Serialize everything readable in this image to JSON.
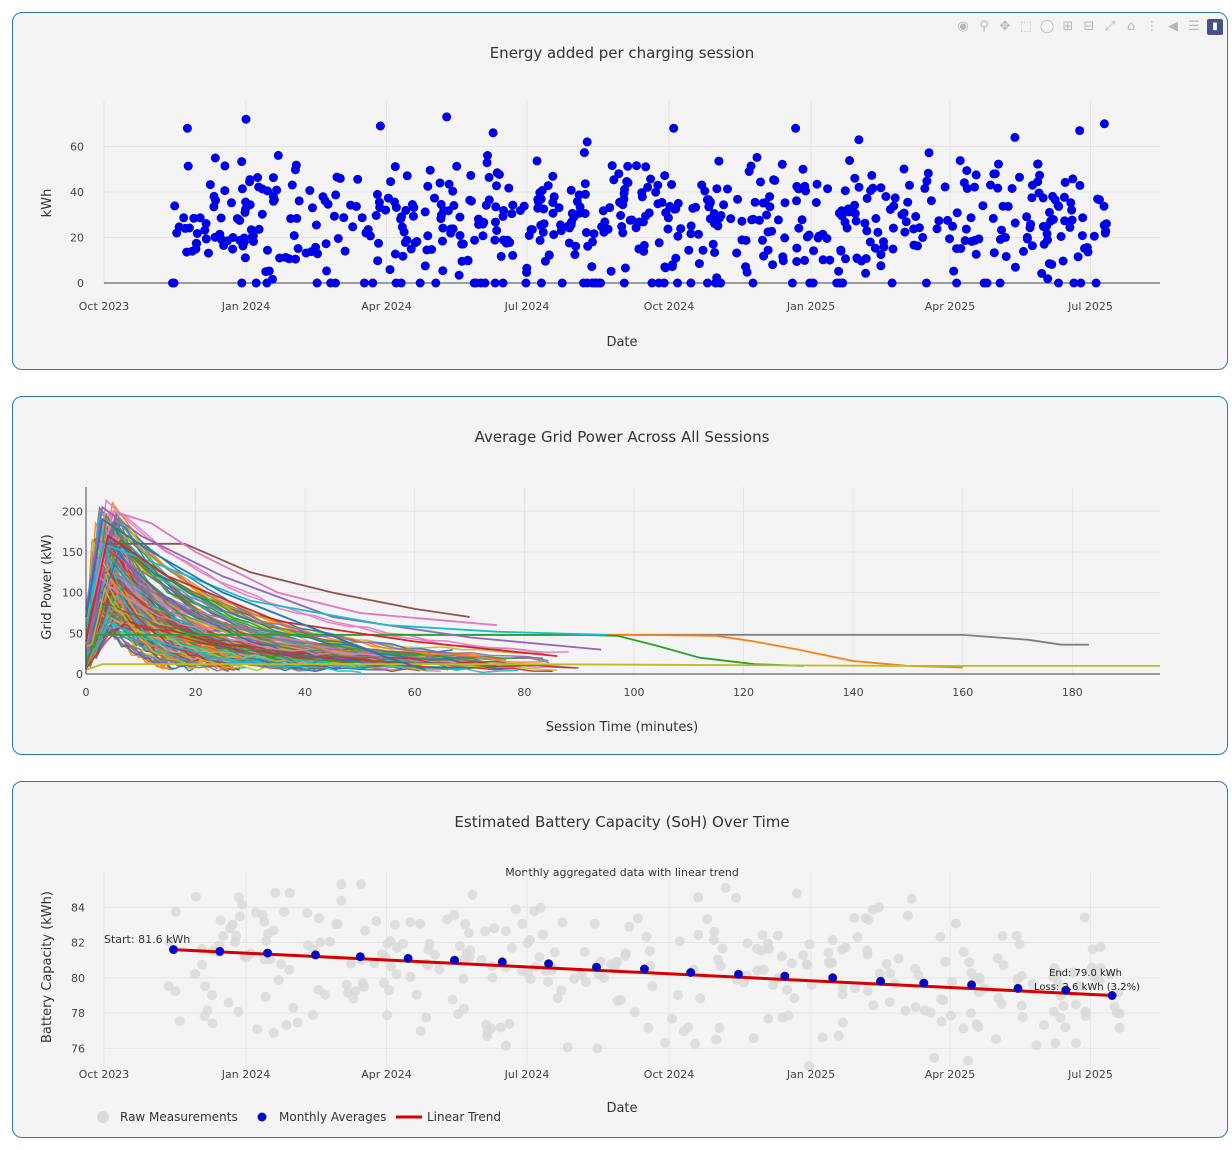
{
  "toolbar": {
    "icons": [
      "camera-icon",
      "zoom-icon",
      "pan-icon",
      "box-select-icon",
      "lasso-icon",
      "zoom-in-icon",
      "zoom-out-icon",
      "autoscale-icon",
      "reset-axes-icon",
      "spike-lines-icon",
      "hover-closest-icon",
      "hover-compare-icon",
      "plotly-logo-icon"
    ]
  },
  "colors": {
    "panel_border": "#2a7ea6",
    "panel_bg": "#f4f4f4",
    "scatter_blue": "#0000e6",
    "trend_red": "#d60000",
    "raw_gray": "#d9d9d9"
  },
  "chart_data": [
    {
      "type": "scatter",
      "title": "Energy added per charging session",
      "xlabel": "Date",
      "ylabel": "kWh",
      "x_range": [
        "2023-10-01",
        "2025-08-15"
      ],
      "ylim": [
        0,
        80
      ],
      "x_ticks": [
        "Oct 2023",
        "Jan 2024",
        "Apr 2024",
        "Jul 2024",
        "Oct 2024",
        "Jan 2025",
        "Apr 2025",
        "Jul 2025"
      ],
      "y_ticks": [
        "0",
        "20",
        "40",
        "60"
      ],
      "series": [
        {
          "name": "",
          "color": "#0000e6",
          "point_count": 620,
          "notable_points": [
            {
              "x": "2023-11-24",
              "y": 68
            },
            {
              "x": "2024-01-01",
              "y": 72
            },
            {
              "x": "2024-03-28",
              "y": 69
            },
            {
              "x": "2024-05-10",
              "y": 73
            },
            {
              "x": "2024-06-09",
              "y": 66
            },
            {
              "x": "2024-08-09",
              "y": 62
            },
            {
              "x": "2024-10-04",
              "y": 68
            },
            {
              "x": "2024-12-22",
              "y": 68
            },
            {
              "x": "2025-02-01",
              "y": 63
            },
            {
              "x": "2025-05-13",
              "y": 64
            },
            {
              "x": "2025-06-24",
              "y": 67
            },
            {
              "x": "2025-07-10",
              "y": 70
            }
          ],
          "range_note": "",
          "y_min": 0,
          "y_max": 73
        }
      ],
      "grid": true
    },
    {
      "type": "line",
      "title": "Average Grid Power Across All Sessions",
      "xlabel": "Session Time (minutes)",
      "ylabel": "Grid Power (kW)",
      "xlim": [
        0,
        196
      ],
      "ylim": [
        0,
        220
      ],
      "x_ticks": [
        "0",
        "20",
        "40",
        "60",
        "80",
        "100",
        "120",
        "140",
        "160",
        "180"
      ],
      "y_ticks": [
        "0",
        "50",
        "100",
        "150",
        "200"
      ],
      "series_count": 200,
      "notable_series": [
        {
          "color": "#7f7f7f",
          "points": [
            [
              0,
              10
            ],
            [
              2,
              48
            ],
            [
              40,
              48
            ],
            [
              90,
              48
            ],
            [
              160,
              48
            ],
            [
              172,
              42
            ],
            [
              178,
              36
            ],
            [
              183,
              36
            ]
          ]
        },
        {
          "color": "#ff7f0e",
          "points": [
            [
              0,
              8
            ],
            [
              2,
              48
            ],
            [
              100,
              48
            ],
            [
              115,
              47
            ],
            [
              122,
              40
            ],
            [
              130,
              30
            ],
            [
              140,
              16
            ],
            [
              150,
              10
            ],
            [
              160,
              8
            ]
          ]
        },
        {
          "color": "#2ca02c",
          "points": [
            [
              0,
              10
            ],
            [
              2,
              48
            ],
            [
              90,
              48
            ],
            [
              97,
              47
            ],
            [
              104,
              35
            ],
            [
              112,
              20
            ],
            [
              122,
              12
            ],
            [
              131,
              10
            ]
          ]
        },
        {
          "color": "#bcbd22",
          "points": [
            [
              0,
              5
            ],
            [
              3,
              12
            ],
            [
              80,
              12
            ],
            [
              150,
              10
            ],
            [
              196,
              10
            ]
          ]
        },
        {
          "color": "#8c564b",
          "points": [
            [
              0,
              40
            ],
            [
              3,
              160
            ],
            [
              18,
              160
            ],
            [
              30,
              125
            ],
            [
              45,
              100
            ],
            [
              60,
              80
            ],
            [
              70,
              70
            ]
          ]
        },
        {
          "color": "#e377c2",
          "points": [
            [
              0,
              60
            ],
            [
              5,
              200
            ],
            [
              12,
              185
            ],
            [
              20,
              150
            ],
            [
              35,
              100
            ],
            [
              50,
              75
            ],
            [
              75,
              60
            ]
          ]
        },
        {
          "color": "#9467bd",
          "points": [
            [
              0,
              80
            ],
            [
              3,
              205
            ],
            [
              10,
              170
            ],
            [
              25,
              120
            ],
            [
              45,
              70
            ],
            [
              70,
              45
            ],
            [
              94,
              30
            ]
          ]
        },
        {
          "color": "#17becf",
          "points": [
            [
              0,
              55
            ],
            [
              3,
              160
            ],
            [
              15,
              130
            ],
            [
              30,
              90
            ],
            [
              55,
              60
            ],
            [
              75,
              52
            ],
            [
              95,
              48
            ]
          ]
        },
        {
          "color": "#d62728",
          "points": [
            [
              0,
              40
            ],
            [
              4,
              170
            ],
            [
              15,
              120
            ],
            [
              35,
              65
            ],
            [
              60,
              40
            ],
            [
              86,
              22
            ]
          ]
        },
        {
          "color": "#1f77b4",
          "points": [
            [
              0,
              70
            ],
            [
              3,
              190
            ],
            [
              12,
              150
            ],
            [
              25,
              100
            ],
            [
              40,
              60
            ],
            [
              55,
              20
            ],
            [
              62,
              5
            ]
          ]
        }
      ],
      "grid": true
    },
    {
      "type": "scatter",
      "title": "Estimated Battery Capacity (SoH) Over Time",
      "subtitle": "Monthly aggregated data with linear trend",
      "xlabel": "Date",
      "ylabel": "Battery Capacity (kWh)",
      "x_range": [
        "2023-10-01",
        "2025-08-15"
      ],
      "ylim": [
        75,
        86
      ],
      "x_ticks": [
        "Oct 2023",
        "Jan 2024",
        "Apr 2024",
        "Jul 2024",
        "Oct 2024",
        "Jan 2025",
        "Apr 2025",
        "Jul 2025"
      ],
      "y_ticks": [
        "76",
        "78",
        "80",
        "82",
        "84"
      ],
      "series": [
        {
          "name": "Raw Measurements",
          "color": "#d9d9d9",
          "point_count": 330,
          "y_min": 75.0,
          "y_max": 85.3
        },
        {
          "name": "Monthly Averages",
          "color": "#0000e6",
          "x": [
            "2023-11-15",
            "2023-12-15",
            "2024-01-15",
            "2024-02-15",
            "2024-03-15",
            "2024-04-15",
            "2024-05-15",
            "2024-06-15",
            "2024-07-15",
            "2024-08-15",
            "2024-09-15",
            "2024-10-15",
            "2024-11-15",
            "2024-12-15",
            "2025-01-15",
            "2025-02-15",
            "2025-03-15",
            "2025-04-15",
            "2025-05-15",
            "2025-06-15",
            "2025-07-15"
          ],
          "y": [
            81.6,
            81.5,
            81.4,
            81.3,
            81.2,
            81.1,
            81.0,
            80.9,
            80.8,
            80.6,
            80.5,
            80.3,
            80.2,
            80.1,
            80.0,
            79.8,
            79.7,
            79.6,
            79.4,
            79.3,
            79.0
          ]
        },
        {
          "name": "Linear Trend",
          "color": "#d60000",
          "x": [
            "2023-11-15",
            "2025-07-15"
          ],
          "y": [
            81.6,
            79.0
          ]
        }
      ],
      "annotations": {
        "start": "Start: 81.6 kWh",
        "end": "End: 79.0 kWh",
        "loss": "Loss: 2.6 kWh (3.2%)"
      },
      "legend": {
        "placement": "bottom-left",
        "items": [
          "Raw Measurements",
          "Monthly Averages",
          "Linear Trend"
        ]
      },
      "grid": true
    }
  ]
}
